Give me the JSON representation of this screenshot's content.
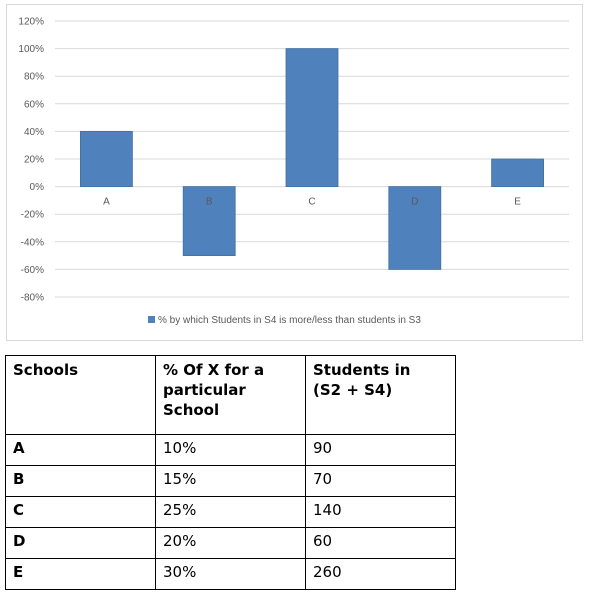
{
  "chart_data": {
    "type": "bar",
    "categories": [
      "A",
      "B",
      "C",
      "D",
      "E"
    ],
    "series": [
      {
        "name": "% by which Students in S4 is more/less than students in S3",
        "values": [
          40,
          -50,
          100,
          -60,
          20
        ]
      }
    ],
    "ylim": [
      -80,
      120
    ],
    "yticks": [
      "120%",
      "100%",
      "80%",
      "60%",
      "40%",
      "20%",
      "0%",
      "-20%",
      "-40%",
      "-60%",
      "-80%"
    ],
    "ytick_values": [
      120,
      100,
      80,
      60,
      40,
      20,
      0,
      -20,
      -40,
      -60,
      -80
    ],
    "grid": true,
    "legend_position": "bottom",
    "bar_color": "#4f81bd"
  },
  "table": {
    "headers": [
      "Schools",
      "% Of X for a particular School",
      "Students in (S2 + S4)"
    ],
    "header_lines": [
      [
        "Schools"
      ],
      [
        "% Of X for a",
        "particular",
        "School"
      ],
      [
        "Students in",
        "(S2 + S4)"
      ]
    ],
    "rows": [
      {
        "school": "A",
        "pct": "10%",
        "students": "90"
      },
      {
        "school": "B",
        "pct": "15%",
        "students": "70"
      },
      {
        "school": "C",
        "pct": "25%",
        "students": "140"
      },
      {
        "school": "D",
        "pct": "20%",
        "students": "60"
      },
      {
        "school": "E",
        "pct": "30%",
        "students": "260"
      }
    ]
  }
}
